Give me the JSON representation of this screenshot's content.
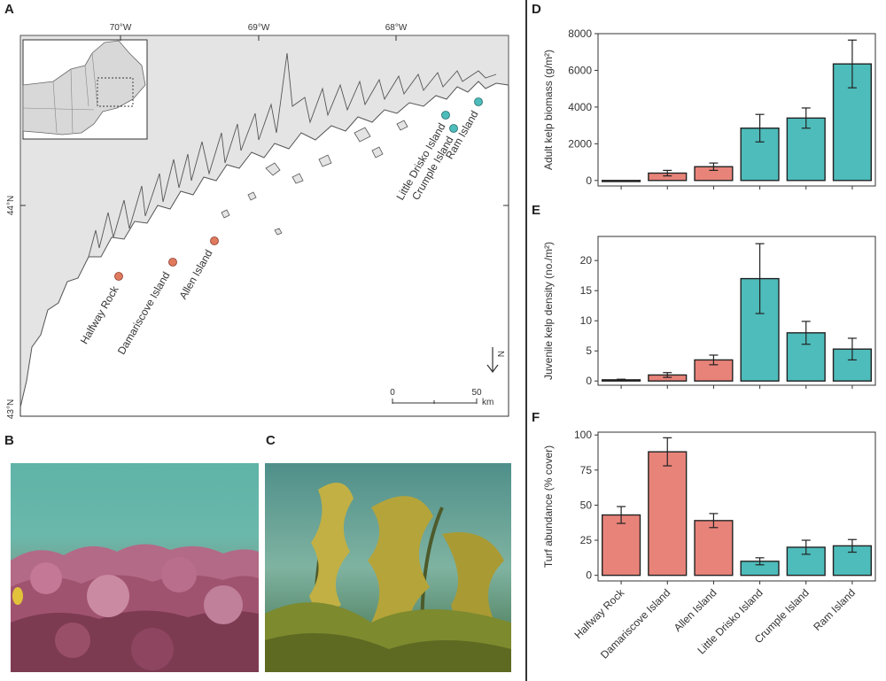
{
  "panels": {
    "a": "A",
    "b": "B",
    "c": "C",
    "d": "D",
    "e": "E",
    "f": "F"
  },
  "map": {
    "lon_labels": [
      "70°W",
      "69°W",
      "68°W"
    ],
    "lat_labels": [
      "44°N",
      "43°N"
    ],
    "scale": {
      "zero": "0",
      "fifty": "50",
      "unit": "km"
    },
    "north_label": "N",
    "sites": [
      {
        "name": "Halfway Rock",
        "group": "turf"
      },
      {
        "name": "Damariscove Island",
        "group": "turf"
      },
      {
        "name": "Allen Island",
        "group": "turf"
      },
      {
        "name": "Little Drisko Island",
        "group": "kelp"
      },
      {
        "name": "Crumple Island",
        "group": "kelp"
      },
      {
        "name": "Ram Island",
        "group": "kelp"
      }
    ],
    "colors": {
      "land": "#e4e4e4",
      "water": "#ffffff",
      "coast": "#555555"
    }
  },
  "colors": {
    "turf": "#e8837a",
    "kelp": "#4dbcbb",
    "error": "#222222"
  },
  "chart_data": [
    {
      "type": "bar",
      "panel": "D",
      "ylabel": "Adult kelp biomass (g/m²)",
      "categories": [
        "Halfway Rock",
        "Damariscove Island",
        "Allen Island",
        "Little Drisko Island",
        "Crumple Island",
        "Ram Island"
      ],
      "values": [
        0,
        400,
        750,
        2850,
        3400,
        6350
      ],
      "error": [
        0,
        150,
        200,
        750,
        550,
        1300
      ],
      "groups": [
        "turf",
        "turf",
        "turf",
        "kelp",
        "kelp",
        "kelp"
      ],
      "ylim": [
        -300,
        8000
      ],
      "yticks": [
        0,
        2000,
        4000,
        6000,
        8000
      ]
    },
    {
      "type": "bar",
      "panel": "E",
      "ylabel": "Juvenile kelp density (no./m²)",
      "categories": [
        "Halfway Rock",
        "Damariscove Island",
        "Allen Island",
        "Little Drisko Island",
        "Crumple Island",
        "Ram Island"
      ],
      "values": [
        0.2,
        1.0,
        3.5,
        17.0,
        8.0,
        5.3
      ],
      "error": [
        0.1,
        0.4,
        0.8,
        5.8,
        1.9,
        1.8
      ],
      "groups": [
        "turf",
        "turf",
        "turf",
        "kelp",
        "kelp",
        "kelp"
      ],
      "ylim": [
        -0.7,
        24
      ],
      "yticks": [
        0,
        5,
        10,
        15,
        20
      ]
    },
    {
      "type": "bar",
      "panel": "F",
      "ylabel": "Turf abundance (% cover)",
      "categories": [
        "Halfway Rock",
        "Damariscove Island",
        "Allen Island",
        "Little Drisko Island",
        "Crumple Island",
        "Ram Island"
      ],
      "values": [
        43,
        88,
        39,
        10,
        20,
        21
      ],
      "error": [
        6,
        10,
        5,
        2.5,
        5,
        4.5
      ],
      "groups": [
        "turf",
        "turf",
        "turf",
        "kelp",
        "kelp",
        "kelp"
      ],
      "ylim": [
        -4,
        102
      ],
      "yticks": [
        0,
        25,
        50,
        75,
        100
      ]
    }
  ]
}
